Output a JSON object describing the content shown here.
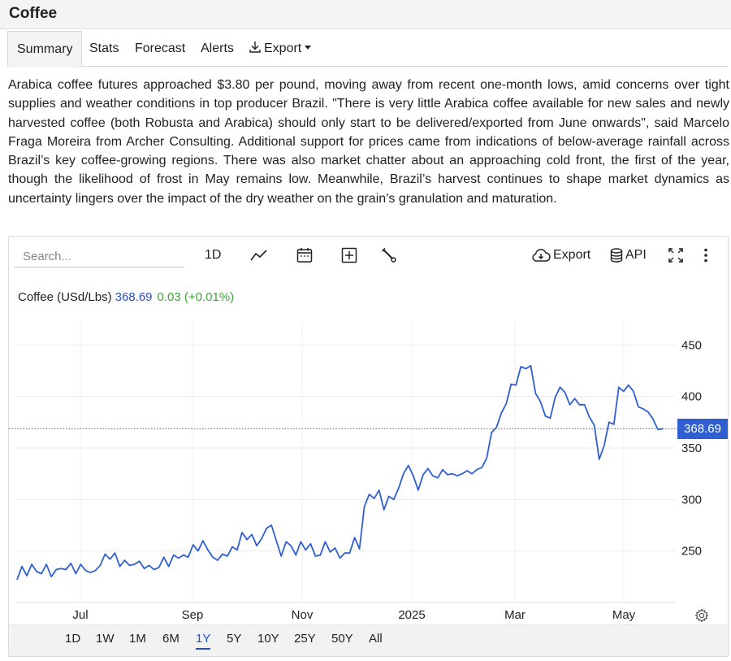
{
  "page": {
    "title": "Coffee"
  },
  "tabs": [
    {
      "label": "Summary",
      "active": true
    },
    {
      "label": "Stats"
    },
    {
      "label": "Forecast"
    },
    {
      "label": "Alerts"
    },
    {
      "label": "Export",
      "icon": "download-icon",
      "dropdown": true
    }
  ],
  "summary": "Arabica coffee futures approached $3.80 per pound, moving away from recent one-month lows, amid concerns over tight supplies and weather conditions in top producer Brazil. \"There is very little Arabica coffee available for new sales and newly harvested coffee (both Robusta and Arabica) should only start to be delivered/exported from June onwards\", said Marcelo Fraga Moreira from Archer Consulting. Additional support for prices came from indications of below-average rainfall across Brazil’s key coffee-growing regions. There was also market chatter about an approaching cold front, the first of the year, though the likelihood of frost in May remains low. Meanwhile, Brazil’s harvest continues to shape market dynamics as uncertainty lingers over the impact of the dry weather on the grain’s granulation and maturation.",
  "toolbar": {
    "search_placeholder": "Search...",
    "interval": "1D",
    "export_label": "Export",
    "api_label": "API",
    "icons": [
      "line-chart-icon",
      "calendar-icon",
      "add-indicator-icon",
      "wrench-icon",
      "cloud-download-icon",
      "database-icon",
      "fullscreen-icon",
      "more-icon",
      "settings-gear-icon"
    ]
  },
  "legend": {
    "name": "Coffee (USd/Lbs)",
    "price": "368.69",
    "change": "0.03 (+0.01%)"
  },
  "price_tag": "368.69",
  "colors": {
    "line": "#2f5fd1",
    "price": "#2650c8",
    "change": "#3aa63a",
    "tag_bg": "#2f5fd1"
  },
  "ranges": [
    {
      "label": "1D"
    },
    {
      "label": "1W"
    },
    {
      "label": "1M"
    },
    {
      "label": "6M"
    },
    {
      "label": "1Y",
      "active": true
    },
    {
      "label": "5Y"
    },
    {
      "label": "10Y"
    },
    {
      "label": "25Y"
    },
    {
      "label": "50Y"
    },
    {
      "label": "All"
    }
  ],
  "chart_data": {
    "type": "line",
    "ylim": [
      200,
      470
    ],
    "y_ticks": [
      250,
      300,
      350,
      400,
      450
    ],
    "x_ticks": [
      "Jul",
      "Sep",
      "Nov",
      "2025",
      "Mar",
      "May"
    ],
    "last_value": 368.69,
    "grid": true,
    "series": [
      {
        "values": [
          222,
          235,
          226,
          237,
          230,
          228,
          237,
          225,
          232,
          233,
          232,
          238,
          228,
          237,
          231,
          229,
          231,
          236,
          247,
          242,
          248,
          235,
          241,
          236,
          237,
          240,
          233,
          236,
          232,
          234,
          244,
          235,
          246,
          243,
          246,
          244,
          256,
          250,
          260,
          251,
          244,
          241,
          247,
          245,
          254,
          251,
          268,
          261,
          266,
          255,
          262,
          272,
          275,
          260,
          245,
          259,
          255,
          246,
          259,
          251,
          257,
          245,
          246,
          259,
          249,
          253,
          243,
          248,
          248,
          263,
          252,
          293,
          305,
          301,
          309,
          290,
          303,
          300,
          311,
          325,
          333,
          323,
          309,
          324,
          330,
          323,
          321,
          329,
          324,
          325,
          323,
          325,
          328,
          325,
          329,
          331,
          340,
          365,
          370,
          384,
          393,
          412,
          411,
          429,
          427,
          430,
          403,
          395,
          381,
          379,
          399,
          409,
          404,
          392,
          398,
          392,
          392,
          380,
          372,
          339,
          352,
          375,
          373,
          409,
          405,
          411,
          405,
          390,
          388,
          385,
          378,
          368,
          368.69
        ]
      }
    ]
  }
}
